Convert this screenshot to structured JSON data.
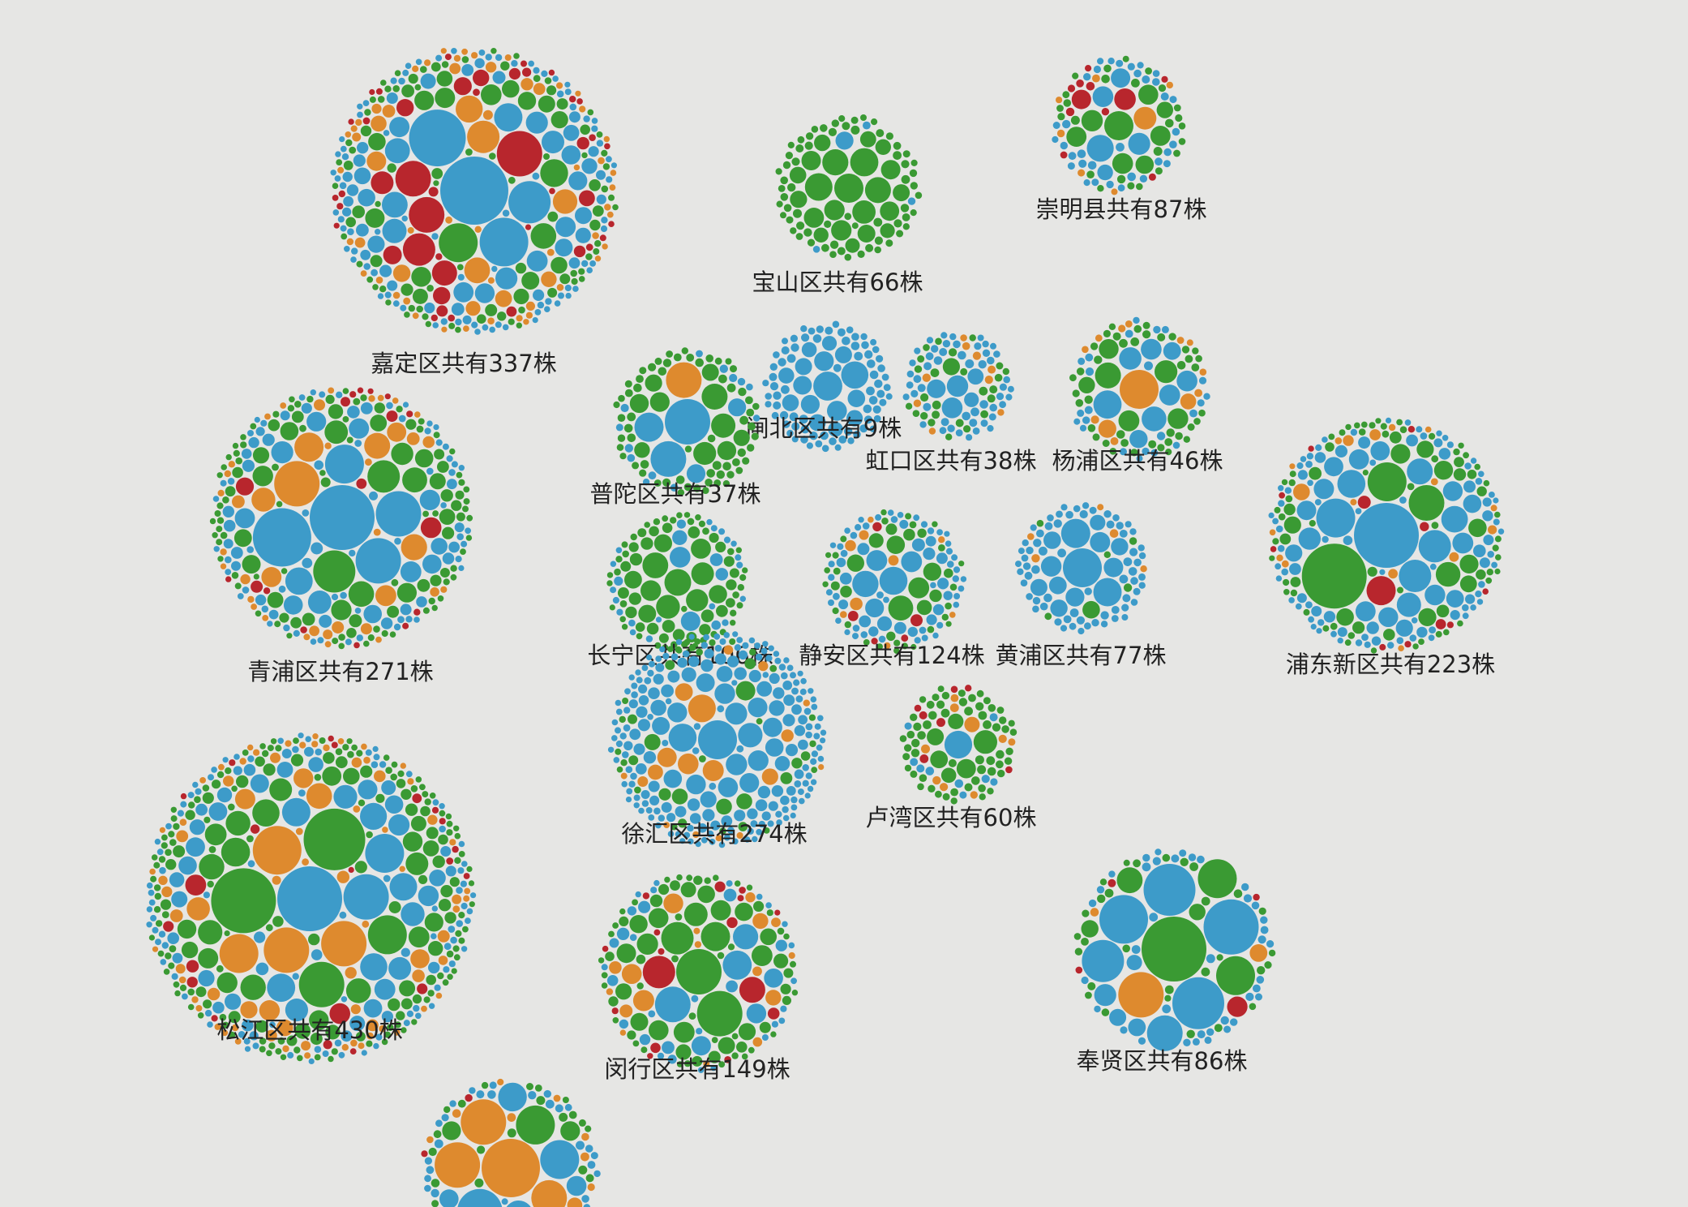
{
  "colors": {
    "background": "#e6e6e4",
    "blue": "#3d9bc9",
    "green": "#3a9a33",
    "orange": "#de8a2e",
    "red": "#b8262d",
    "label": "#222222"
  },
  "clusters": [
    {
      "id": "jiading",
      "label": "嘉定区共有337株",
      "count": 337,
      "mix": {
        "blue": 0.4,
        "green": 0.3,
        "orange": 0.18,
        "red": 0.12
      },
      "big": [
        [
          "blue",
          42
        ],
        [
          "red",
          28
        ],
        [
          "blue",
          30
        ],
        [
          "blue",
          35
        ],
        [
          "red",
          22
        ],
        [
          "red",
          22
        ],
        [
          "green",
          24
        ],
        [
          "orange",
          20
        ],
        [
          "red",
          20
        ],
        [
          "blue",
          26
        ]
      ]
    },
    {
      "id": "baoshan",
      "label": "宝山区共有66株",
      "count": 66,
      "mix": {
        "blue": 0.05,
        "green": 0.95,
        "orange": 0,
        "red": 0
      },
      "big": [
        [
          "green",
          18
        ],
        [
          "green",
          16
        ],
        [
          "green",
          17
        ]
      ]
    },
    {
      "id": "chongming",
      "label": "崇明县共有87株",
      "count": 87,
      "mix": {
        "blue": 0.45,
        "green": 0.35,
        "orange": 0.12,
        "red": 0.08
      },
      "big": [
        [
          "green",
          18
        ],
        [
          "orange",
          14
        ],
        [
          "red",
          12
        ],
        [
          "blue",
          12
        ]
      ]
    },
    {
      "id": "zhabei",
      "label": "闸北区共有9株",
      "count": 9,
      "mix": {
        "blue": 1,
        "green": 0,
        "orange": 0,
        "red": 0
      },
      "big": []
    },
    {
      "id": "putuo",
      "label": "普陀区共有37株",
      "count": 37,
      "mix": {
        "blue": 0.2,
        "green": 0.8,
        "orange": 0,
        "red": 0
      },
      "big": [
        [
          "blue",
          28
        ],
        [
          "blue",
          22
        ],
        [
          "orange",
          22
        ],
        [
          "blue",
          18
        ],
        [
          "green",
          16
        ]
      ]
    },
    {
      "id": "hongkou",
      "label": "虹口区共有38株",
      "count": 38,
      "mix": {
        "blue": 0.55,
        "green": 0.35,
        "orange": 0.1,
        "red": 0
      },
      "big": []
    },
    {
      "id": "yangpu",
      "label": "杨浦区共有46株",
      "count": 46,
      "mix": {
        "blue": 0.3,
        "green": 0.5,
        "orange": 0.2,
        "red": 0
      },
      "big": [
        [
          "orange",
          24
        ],
        [
          "green",
          16
        ]
      ]
    },
    {
      "id": "qingpu",
      "label": "青浦区共有271株",
      "count": 271,
      "mix": {
        "blue": 0.38,
        "green": 0.4,
        "orange": 0.17,
        "red": 0.05
      },
      "big": [
        [
          "blue",
          40
        ],
        [
          "blue",
          36
        ],
        [
          "blue",
          28
        ],
        [
          "orange",
          28
        ],
        [
          "green",
          26
        ],
        [
          "blue",
          28
        ],
        [
          "blue",
          24
        ],
        [
          "green",
          20
        ],
        [
          "orange",
          18
        ]
      ]
    },
    {
      "id": "changning",
      "label": "长宁区共有106株",
      "count": 106,
      "mix": {
        "blue": 0.2,
        "green": 0.8,
        "orange": 0,
        "red": 0
      },
      "big": [
        [
          "blue",
          12
        ]
      ]
    },
    {
      "id": "jingan",
      "label": "静安区共有124株",
      "count": 124,
      "mix": {
        "blue": 0.55,
        "green": 0.3,
        "orange": 0.1,
        "red": 0.05
      },
      "big": []
    },
    {
      "id": "huangpu",
      "label": "黄浦区共有77株",
      "count": 77,
      "mix": {
        "blue": 0.88,
        "green": 0.07,
        "orange": 0.05,
        "red": 0
      },
      "big": [
        [
          "blue",
          24
        ],
        [
          "blue",
          18
        ],
        [
          "blue",
          12
        ]
      ]
    },
    {
      "id": "pudong",
      "label": "浦东新区共有223株",
      "count": 223,
      "mix": {
        "blue": 0.45,
        "green": 0.38,
        "orange": 0.1,
        "red": 0.07
      },
      "big": [
        [
          "blue",
          40
        ],
        [
          "green",
          40
        ],
        [
          "blue",
          24
        ],
        [
          "red",
          18
        ],
        [
          "green",
          22
        ],
        [
          "blue",
          20
        ],
        [
          "green",
          24
        ],
        [
          "blue",
          20
        ]
      ]
    },
    {
      "id": "xuhui",
      "label": "徐汇区共有274株",
      "count": 274,
      "mix": {
        "blue": 0.82,
        "green": 0.12,
        "orange": 0.06,
        "red": 0
      },
      "big": [
        [
          "blue",
          24
        ],
        [
          "orange",
          12
        ],
        [
          "blue",
          12
        ]
      ]
    },
    {
      "id": "luwan",
      "label": "卢湾区共有60株",
      "count": 60,
      "mix": {
        "blue": 0.15,
        "green": 0.7,
        "orange": 0.1,
        "red": 0.05
      },
      "big": []
    },
    {
      "id": "songjiang",
      "label": "松江区共有430株",
      "count": 430,
      "mix": {
        "blue": 0.35,
        "green": 0.45,
        "orange": 0.15,
        "red": 0.05
      },
      "big": [
        [
          "blue",
          40
        ],
        [
          "green",
          40
        ],
        [
          "green",
          38
        ],
        [
          "orange",
          30
        ],
        [
          "blue",
          28
        ],
        [
          "orange",
          28
        ],
        [
          "orange",
          28
        ],
        [
          "green",
          28
        ],
        [
          "blue",
          24
        ],
        [
          "green",
          24
        ],
        [
          "orange",
          24
        ]
      ]
    },
    {
      "id": "minhang",
      "label": "闵行区共有149株",
      "count": 149,
      "mix": {
        "blue": 0.25,
        "green": 0.55,
        "orange": 0.1,
        "red": 0.1
      },
      "big": [
        [
          "green",
          28
        ],
        [
          "green",
          28
        ],
        [
          "blue",
          22
        ],
        [
          "red",
          20
        ],
        [
          "green",
          20
        ],
        [
          "red",
          16
        ],
        [
          "green",
          18
        ]
      ]
    },
    {
      "id": "fengxian",
      "label": "奉贤区共有86株",
      "count": 86,
      "mix": {
        "blue": 0.5,
        "green": 0.35,
        "orange": 0.1,
        "red": 0.05
      },
      "big": [
        [
          "blue",
          34
        ],
        [
          "green",
          40
        ],
        [
          "blue",
          32
        ],
        [
          "blue",
          32
        ],
        [
          "blue",
          30
        ],
        [
          "orange",
          28
        ],
        [
          "blue",
          26
        ],
        [
          "green",
          24
        ],
        [
          "green",
          24
        ],
        [
          "blue",
          22
        ]
      ]
    },
    {
      "id": "jinshan",
      "label": "",
      "count": 0,
      "mix": {
        "blue": 0.35,
        "green": 0.35,
        "orange": 0.2,
        "red": 0.1
      },
      "big": [
        [
          "orange",
          36
        ],
        [
          "blue",
          28
        ],
        [
          "orange",
          28
        ],
        [
          "green",
          24
        ],
        [
          "orange",
          28
        ],
        [
          "blue",
          24
        ],
        [
          "orange",
          22
        ],
        [
          "blue",
          18
        ]
      ]
    }
  ]
}
